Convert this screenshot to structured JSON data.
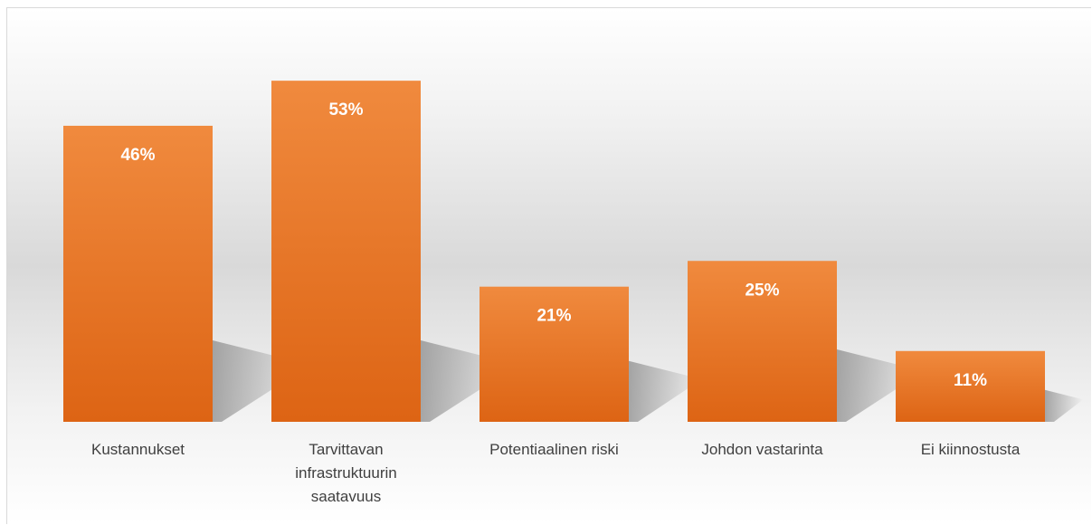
{
  "chart_data": {
    "type": "bar",
    "categories": [
      "Kustannukset",
      "Tarvittavan infrastruktuurin saatavuus",
      "Potentiaalinen riski",
      "Johdon vastarinta",
      "Ei kiinnostusta"
    ],
    "values": [
      46,
      53,
      21,
      25,
      11
    ],
    "value_labels": [
      "46%",
      "53%",
      "21%",
      "25%",
      "11%"
    ],
    "color": "#ec7a2e"
  }
}
